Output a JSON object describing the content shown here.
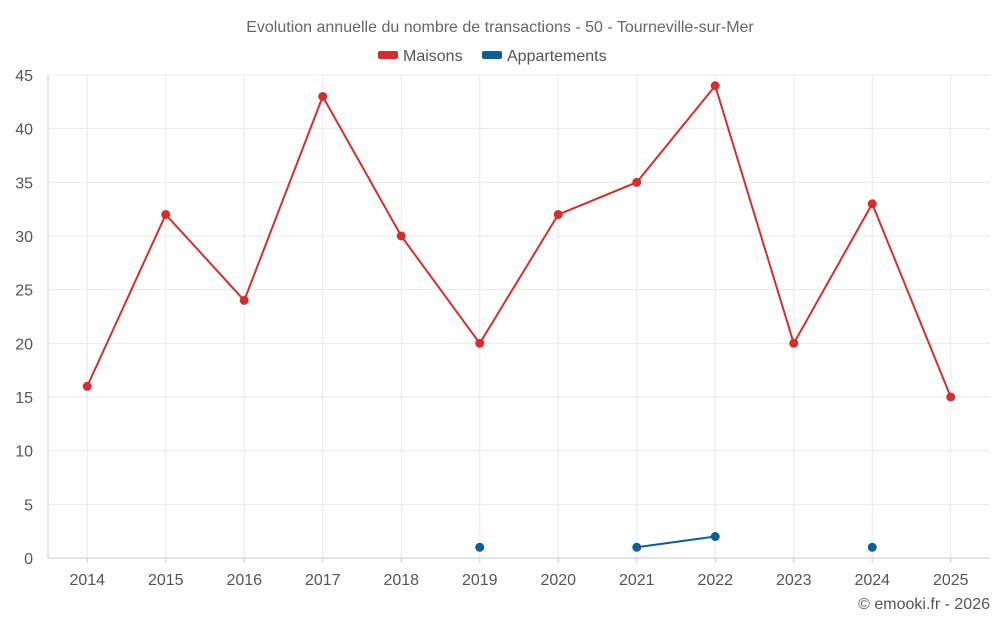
{
  "chart_data": {
    "type": "line",
    "title": "Evolution annuelle du nombre de transactions - 50 - Tourneville-sur-Mer",
    "categories": [
      "2014",
      "2015",
      "2016",
      "2017",
      "2018",
      "2019",
      "2020",
      "2021",
      "2022",
      "2023",
      "2024",
      "2025"
    ],
    "series": [
      {
        "name": "Maisons",
        "color": "#d32f2f",
        "values": [
          16,
          32,
          24,
          43,
          30,
          20,
          32,
          35,
          44,
          20,
          33,
          15
        ]
      },
      {
        "name": "Appartements",
        "color": "#0e5f96",
        "values": [
          null,
          null,
          null,
          null,
          null,
          1,
          null,
          1,
          2,
          null,
          1,
          null
        ]
      }
    ],
    "ylim": [
      0,
      45
    ],
    "yticks": [
      0,
      5,
      10,
      15,
      20,
      25,
      30,
      35,
      40,
      45
    ],
    "xlabel": "",
    "ylabel": "",
    "grid": true,
    "legend_position": "top-center"
  },
  "footer": {
    "copyright": "© emooki.fr - 2026"
  }
}
